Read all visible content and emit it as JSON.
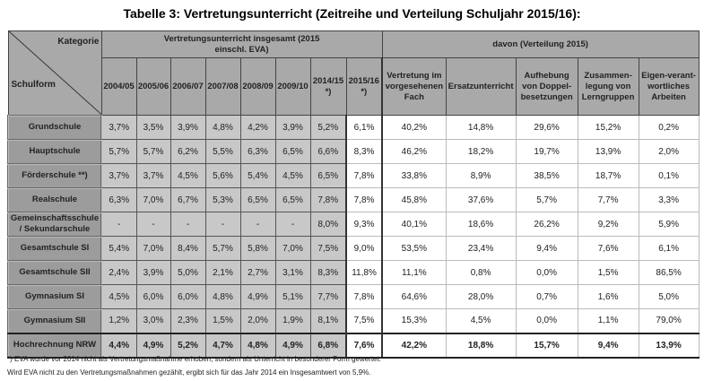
{
  "title": "Tabelle 3: Vertretungsunterricht (Zeitreihe und Verteilung Schuljahr 2015/16):",
  "header": {
    "kategorie": "Kategorie",
    "schulform": "Schulform",
    "group1": "Vertretungsunterricht insgesamt (2015 einschl. EVA)",
    "group2": "davon (Verteilung 2015)",
    "years": [
      "2004/05",
      "2005/06",
      "2006/07",
      "2007/08",
      "2008/09",
      "2009/10",
      "2014/15 *)",
      "2015/16 *)"
    ],
    "dist": [
      "Vertretung im vorgesehenen Fach",
      "Ersatzunterricht",
      "Aufhebung von Doppel-besetzungen",
      "Zusammen-legung von Lerngruppen",
      "Eigen-verant-wortliches Arbeiten"
    ]
  },
  "rows": [
    {
      "label": "Grundschule",
      "values": [
        "3,7%",
        "3,5%",
        "3,9%",
        "4,8%",
        "4,2%",
        "3,9%",
        "5,2%",
        "6,1%",
        "40,2%",
        "14,8%",
        "29,6%",
        "15,2%",
        "0,2%"
      ]
    },
    {
      "label": "Hauptschule",
      "values": [
        "5,7%",
        "5,7%",
        "6,2%",
        "5,5%",
        "6,3%",
        "6,5%",
        "6,6%",
        "8,3%",
        "46,2%",
        "18,2%",
        "19,7%",
        "13,9%",
        "2,0%"
      ]
    },
    {
      "label": "Förderschule **)",
      "values": [
        "3,7%",
        "3,7%",
        "4,5%",
        "5,6%",
        "5,4%",
        "4,5%",
        "6,5%",
        "7,8%",
        "33,8%",
        "8,9%",
        "38,5%",
        "18,7%",
        "0,1%"
      ]
    },
    {
      "label": "Realschule",
      "values": [
        "6,3%",
        "7,0%",
        "6,7%",
        "5,3%",
        "6,5%",
        "6,5%",
        "7,8%",
        "7,8%",
        "45,8%",
        "37,6%",
        "5,7%",
        "7,7%",
        "3,3%"
      ]
    },
    {
      "label": "Gemeinschaftsschule / Sekundarschule",
      "values": [
        "-",
        "-",
        "-",
        "-",
        "-",
        "-",
        "8,0%",
        "9,3%",
        "40,1%",
        "18,6%",
        "26,2%",
        "9,2%",
        "5,9%"
      ]
    },
    {
      "label": "Gesamtschule SI",
      "values": [
        "5,4%",
        "7,0%",
        "8,4%",
        "5,7%",
        "5,8%",
        "7,0%",
        "7,5%",
        "9,0%",
        "53,5%",
        "23,4%",
        "9,4%",
        "7,6%",
        "6,1%"
      ]
    },
    {
      "label": "Gesamtschule SII",
      "values": [
        "2,4%",
        "3,9%",
        "5,0%",
        "2,1%",
        "2,7%",
        "3,1%",
        "8,3%",
        "11,8%",
        "11,1%",
        "0,8%",
        "0,0%",
        "1,5%",
        "86,5%"
      ]
    },
    {
      "label": "Gymnasium SI",
      "values": [
        "4,5%",
        "6,0%",
        "6,0%",
        "4,8%",
        "4,9%",
        "5,1%",
        "7,7%",
        "7,8%",
        "64,6%",
        "28,0%",
        "0,7%",
        "1,6%",
        "5,0%"
      ]
    },
    {
      "label": "Gymnasium SII",
      "values": [
        "1,2%",
        "3,0%",
        "2,3%",
        "1,5%",
        "2,0%",
        "1,9%",
        "8,1%",
        "7,5%",
        "15,3%",
        "4,5%",
        "0,0%",
        "1,1%",
        "79,0%"
      ]
    }
  ],
  "total": {
    "label": "Hochrechnung NRW",
    "values": [
      "4,4%",
      "4,9%",
      "5,2%",
      "4,7%",
      "4,8%",
      "4,9%",
      "6,8%",
      "7,6%",
      "42,2%",
      "18,8%",
      "15,7%",
      "9,4%",
      "13,9%"
    ]
  },
  "footnotes": [
    "*) EVA wurde vor 2014 nicht als Vertretungsmaßnahme erhoben, sondern als Unterricht in besonderer Form gewertet.",
    "Wird EVA nicht zu den Vertretungsmaßnahmen gezählt, ergibt sich für das Jahr 2014 ein Insgesamtwert von 5,9%."
  ]
}
